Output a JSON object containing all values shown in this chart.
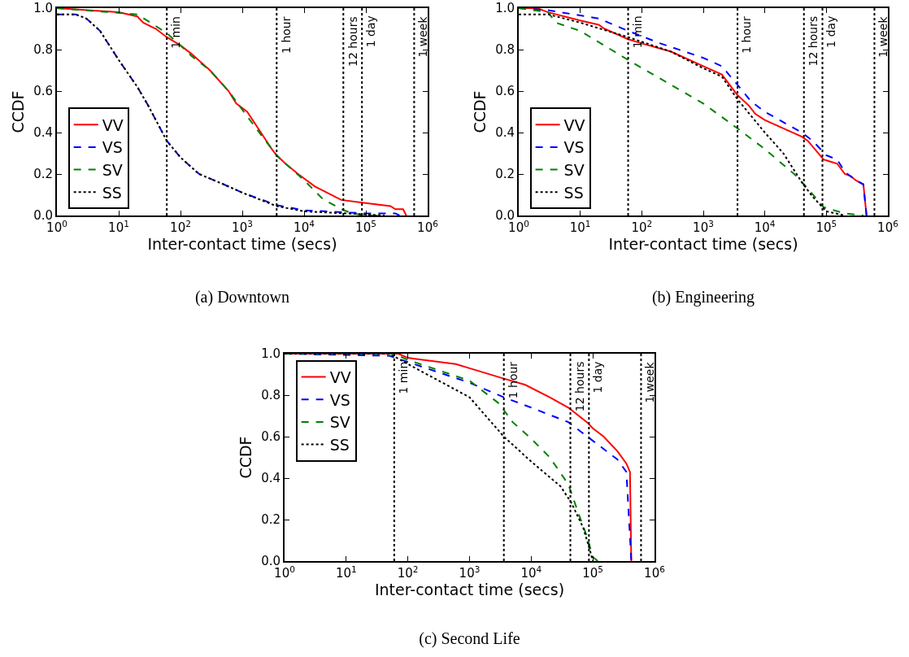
{
  "chart_data": [
    {
      "type": "line",
      "title": "(a) Downtown",
      "xlabel": "Inter-contact time (secs)",
      "ylabel": "CCDF",
      "log": "x",
      "grid": false,
      "legend": "bottom left",
      "xlim": [
        1,
        1000000
      ],
      "ylim": [
        0,
        1
      ],
      "xticks": [
        {
          "value": 1,
          "label": "10$^{0}$"
        },
        {
          "value": 10,
          "label": "10$^{1}$"
        },
        {
          "value": 100,
          "label": "10$^{2}$"
        },
        {
          "value": 1000,
          "label": "10$^{3}$"
        },
        {
          "value": 10000,
          "label": "10$^{4}$"
        },
        {
          "value": 100000,
          "label": "10$^{5}$"
        },
        {
          "value": 1000000,
          "label": "10$^{6}$"
        }
      ],
      "yticks": [
        {
          "value": 0,
          "label": "0.0"
        },
        {
          "value": 0.2,
          "label": "0.2"
        },
        {
          "value": 0.4,
          "label": "0.4"
        },
        {
          "value": 0.6,
          "label": "0.6"
        },
        {
          "value": 0.8,
          "label": "0.8"
        },
        {
          "value": 1,
          "label": "1.0"
        }
      ],
      "ref_lines": [
        {
          "axis": "x",
          "value": 60,
          "label": "1 min",
          "color": "#000000",
          "line_style": "dotted"
        },
        {
          "axis": "x",
          "value": 3600,
          "label": "1 hour",
          "color": "#000000",
          "line_style": "dotted"
        },
        {
          "axis": "x",
          "value": 43200,
          "label": "12 hours",
          "color": "#000000",
          "line_style": "dotted"
        },
        {
          "axis": "x",
          "value": 86400,
          "label": "1 day",
          "color": "#000000",
          "line_style": "dotted"
        },
        {
          "axis": "x",
          "value": 604800,
          "label": "1 week",
          "color": "#000000",
          "line_style": "dotted"
        }
      ],
      "series": [
        {
          "name": "VV",
          "color": "#ff0000",
          "line_style": "solid",
          "x": [
            1,
            10,
            20,
            25,
            40,
            60,
            100,
            150,
            300,
            600,
            800,
            1200,
            2000,
            3000,
            3600,
            5000,
            8000,
            15000,
            40000,
            100000,
            250000,
            300000,
            400000,
            450000
          ],
          "values": [
            1,
            0.98,
            0.96,
            0.93,
            0.9,
            0.86,
            0.82,
            0.78,
            0.7,
            0.6,
            0.54,
            0.5,
            0.4,
            0.32,
            0.29,
            0.25,
            0.2,
            0.14,
            0.075,
            0.06,
            0.045,
            0.03,
            0.03,
            0
          ]
        },
        {
          "name": "VS",
          "color": "#0000ff",
          "line_style": "dashed",
          "x": [
            1,
            2,
            3,
            5,
            10,
            20,
            30,
            60,
            100,
            200,
            500,
            1000,
            3600,
            10000,
            100000,
            300000,
            350000
          ],
          "values": [
            0.97,
            0.97,
            0.95,
            0.89,
            0.75,
            0.62,
            0.53,
            0.36,
            0.28,
            0.2,
            0.15,
            0.11,
            0.05,
            0.025,
            0.01,
            0.01,
            0
          ]
        },
        {
          "name": "SV",
          "color": "#008000",
          "line_style": "dashed",
          "x": [
            1,
            20,
            60,
            100,
            150,
            300,
            600,
            1000,
            2000,
            3600,
            5000,
            10000,
            20000,
            40000,
            60000,
            100000,
            200000
          ],
          "values": [
            1,
            0.97,
            0.88,
            0.82,
            0.77,
            0.7,
            0.6,
            0.51,
            0.39,
            0.29,
            0.25,
            0.17,
            0.08,
            0.03,
            0.01,
            0,
            0
          ]
        },
        {
          "name": "SS",
          "color": "#000000",
          "line_style": "dotted",
          "x": [
            1,
            2,
            3,
            5,
            10,
            20,
            30,
            60,
            100,
            200,
            500,
            1000,
            3600,
            10000,
            100000,
            200000
          ],
          "values": [
            0.97,
            0.97,
            0.95,
            0.89,
            0.75,
            0.62,
            0.53,
            0.36,
            0.28,
            0.2,
            0.15,
            0.11,
            0.045,
            0.02,
            0.005,
            0
          ]
        }
      ]
    },
    {
      "type": "line",
      "title": "(b) Engineering",
      "xlabel": "Inter-contact time (secs)",
      "ylabel": "CCDF",
      "log": "x",
      "grid": false,
      "legend": "bottom left",
      "xlim": [
        1,
        1000000
      ],
      "ylim": [
        0,
        1
      ],
      "xticks": [
        {
          "value": 1,
          "label": "10$^{0}$"
        },
        {
          "value": 10,
          "label": "10$^{1}$"
        },
        {
          "value": 100,
          "label": "10$^{2}$"
        },
        {
          "value": 1000,
          "label": "10$^{3}$"
        },
        {
          "value": 10000,
          "label": "10$^{4}$"
        },
        {
          "value": 100000,
          "label": "10$^{5}$"
        },
        {
          "value": 1000000,
          "label": "10$^{6}$"
        }
      ],
      "yticks": [
        {
          "value": 0,
          "label": "0.0"
        },
        {
          "value": 0.2,
          "label": "0.2"
        },
        {
          "value": 0.4,
          "label": "0.4"
        },
        {
          "value": 0.6,
          "label": "0.6"
        },
        {
          "value": 0.8,
          "label": "0.8"
        },
        {
          "value": 1,
          "label": "1.0"
        }
      ],
      "ref_lines": [
        {
          "axis": "x",
          "value": 60,
          "label": "1 min",
          "color": "#000000",
          "line_style": "dotted"
        },
        {
          "axis": "x",
          "value": 3600,
          "label": "1 hour",
          "color": "#000000",
          "line_style": "dotted"
        },
        {
          "axis": "x",
          "value": 43200,
          "label": "12 hours",
          "color": "#000000",
          "line_style": "dotted"
        },
        {
          "axis": "x",
          "value": 86400,
          "label": "1 day",
          "color": "#000000",
          "line_style": "dotted"
        },
        {
          "axis": "x",
          "value": 604800,
          "label": "1 week",
          "color": "#000000",
          "line_style": "dotted"
        }
      ],
      "series": [
        {
          "name": "VV",
          "color": "#ff0000",
          "line_style": "solid",
          "x": [
            1,
            2,
            3,
            10,
            20,
            25,
            60,
            100,
            300,
            1000,
            2000,
            3600,
            5500,
            7000,
            10000,
            20000,
            40000,
            50000,
            90000,
            150000,
            200000,
            250000,
            300000,
            400000,
            450000
          ],
          "values": [
            1,
            1,
            0.98,
            0.94,
            0.92,
            0.9,
            0.85,
            0.83,
            0.79,
            0.72,
            0.68,
            0.58,
            0.53,
            0.49,
            0.46,
            0.42,
            0.38,
            0.36,
            0.27,
            0.25,
            0.2,
            0.19,
            0.17,
            0.15,
            0
          ]
        },
        {
          "name": "VS",
          "color": "#0000ff",
          "line_style": "dashed",
          "x": [
            1,
            3,
            20,
            60,
            200,
            1000,
            2000,
            3600,
            6000,
            10000,
            40000,
            60000,
            100000,
            150000,
            200000,
            300000,
            400000,
            450000
          ],
          "values": [
            1,
            0.99,
            0.95,
            0.89,
            0.83,
            0.76,
            0.72,
            0.63,
            0.55,
            0.5,
            0.4,
            0.36,
            0.29,
            0.27,
            0.21,
            0.17,
            0.15,
            0
          ]
        },
        {
          "name": "SV",
          "color": "#008000",
          "line_style": "dashed",
          "x": [
            1,
            3,
            4,
            10,
            60,
            200,
            1000,
            3600,
            10000,
            30000,
            50000,
            90000,
            200000,
            400000
          ],
          "values": [
            1,
            0.98,
            0.93,
            0.89,
            0.75,
            0.66,
            0.54,
            0.42,
            0.32,
            0.2,
            0.13,
            0.04,
            0.01,
            0
          ]
        },
        {
          "name": "SS",
          "color": "#000000",
          "line_style": "dotted",
          "x": [
            1,
            3,
            10,
            60,
            300,
            1000,
            2000,
            3600,
            10000,
            20000,
            40000,
            60000,
            100000,
            200000
          ],
          "values": [
            0.97,
            0.97,
            0.93,
            0.86,
            0.79,
            0.71,
            0.67,
            0.56,
            0.4,
            0.3,
            0.16,
            0.09,
            0.02,
            0
          ]
        }
      ]
    },
    {
      "type": "line",
      "title": "(c) Second Life",
      "xlabel": "Inter-contact time (secs)",
      "ylabel": "CCDF",
      "log": "x",
      "grid": false,
      "legend": "top left",
      "xlim": [
        1,
        1000000
      ],
      "ylim": [
        0,
        1
      ],
      "xticks": [
        {
          "value": 1,
          "label": "10$^{0}$"
        },
        {
          "value": 10,
          "label": "10$^{1}$"
        },
        {
          "value": 100,
          "label": "10$^{2}$"
        },
        {
          "value": 1000,
          "label": "10$^{3}$"
        },
        {
          "value": 10000,
          "label": "10$^{4}$"
        },
        {
          "value": 100000,
          "label": "10$^{5}$"
        },
        {
          "value": 1000000,
          "label": "10$^{6}$"
        }
      ],
      "yticks": [
        {
          "value": 0,
          "label": "0.0"
        },
        {
          "value": 0.2,
          "label": "0.2"
        },
        {
          "value": 0.4,
          "label": "0.4"
        },
        {
          "value": 0.6,
          "label": "0.6"
        },
        {
          "value": 0.8,
          "label": "0.8"
        },
        {
          "value": 1,
          "label": "1.0"
        }
      ],
      "ref_lines": [
        {
          "axis": "x",
          "value": 60,
          "label": "1 min",
          "color": "#000000",
          "line_style": "dotted"
        },
        {
          "axis": "x",
          "value": 3600,
          "label": "1 hour",
          "color": "#000000",
          "line_style": "dotted"
        },
        {
          "axis": "x",
          "value": 43200,
          "label": "12 hours",
          "color": "#000000",
          "line_style": "dotted"
        },
        {
          "axis": "x",
          "value": 86400,
          "label": "1 day",
          "color": "#000000",
          "line_style": "dotted"
        },
        {
          "axis": "x",
          "value": 604800,
          "label": "1 week",
          "color": "#000000",
          "line_style": "dotted"
        }
      ],
      "series": [
        {
          "name": "VV",
          "color": "#ff0000",
          "line_style": "solid",
          "x": [
            1,
            70,
            100,
            600,
            1000,
            3600,
            8000,
            20000,
            40000,
            80000,
            100000,
            150000,
            250000,
            350000,
            400000,
            420000
          ],
          "values": [
            1,
            1,
            0.98,
            0.95,
            0.93,
            0.88,
            0.85,
            0.79,
            0.74,
            0.67,
            0.64,
            0.6,
            0.53,
            0.47,
            0.43,
            0
          ]
        },
        {
          "name": "VS",
          "color": "#0000ff",
          "line_style": "dashed",
          "x": [
            1,
            50,
            100,
            1000,
            3600,
            10000,
            40000,
            100000,
            250000,
            350000,
            420000
          ],
          "values": [
            1,
            0.99,
            0.96,
            0.86,
            0.79,
            0.74,
            0.67,
            0.58,
            0.49,
            0.43,
            0
          ]
        },
        {
          "name": "SV",
          "color": "#008000",
          "line_style": "dashed",
          "x": [
            1,
            60,
            100,
            1000,
            3000,
            5000,
            10000,
            20000,
            40000,
            60000,
            80000,
            100000,
            120000
          ],
          "values": [
            1,
            1,
            0.97,
            0.87,
            0.76,
            0.67,
            0.59,
            0.5,
            0.37,
            0.22,
            0.12,
            0.02,
            0
          ]
        },
        {
          "name": "SS",
          "color": "#000000",
          "line_style": "dotted",
          "x": [
            1,
            50,
            100,
            1000,
            3600,
            10000,
            30000,
            45000,
            70000,
            90000,
            100000
          ],
          "values": [
            1,
            1,
            0.95,
            0.79,
            0.6,
            0.48,
            0.36,
            0.28,
            0.16,
            0.05,
            0
          ]
        }
      ]
    }
  ]
}
